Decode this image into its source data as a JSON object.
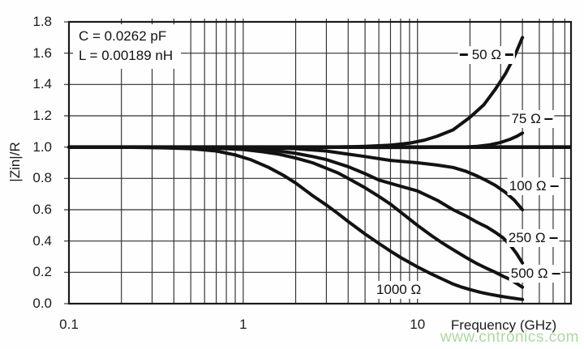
{
  "figure": {
    "xlabel": "Frequency (GHz)",
    "ylabel": "|Zin|/R",
    "watermark": "www.cntronics.com",
    "annotation": {
      "line1": "C = 0.0262 pF",
      "line2": "L = 0.00189 nH"
    }
  },
  "chart_data": {
    "type": "line",
    "title": "",
    "xlabel": "Frequency (GHz)",
    "ylabel": "|Zin|/R",
    "x_scale": "log",
    "xlim": [
      0.1,
      76
    ],
    "ylim": [
      0.0,
      1.8
    ],
    "grid": true,
    "x_ticks": {
      "values": [
        0.1,
        1,
        10
      ],
      "labels": [
        "0.1",
        "1",
        "10"
      ]
    },
    "x_minor_ticks": [
      0.2,
      0.3,
      0.4,
      0.5,
      0.6,
      0.7,
      0.8,
      0.9,
      2,
      3,
      4,
      5,
      6,
      7,
      8,
      9,
      20,
      30,
      40,
      50,
      60,
      70
    ],
    "y_ticks": [
      0.0,
      0.2,
      0.4,
      0.6,
      0.8,
      1.0,
      1.2,
      1.4,
      1.6,
      1.8
    ],
    "y_tick_labels": [
      "0.0",
      "0.2",
      "0.4",
      "0.6",
      "0.8",
      "1.0",
      "1.2",
      "1.4",
      "1.6",
      "1.8"
    ],
    "reference_line": {
      "value": 1.0
    },
    "annotation": [
      "C = 0.0262 pF",
      "L = 0.00189 nH"
    ],
    "legend_position": "labels-on-curves",
    "series": [
      {
        "label": "50 Ω",
        "resistance_ohms": 50,
        "leader_dash": "both",
        "label_at": [
          24.9,
          1.59
        ],
        "points": [
          [
            0.1,
            1.0
          ],
          [
            0.5,
            1.0
          ],
          [
            1,
            1.0
          ],
          [
            2,
            1.0
          ],
          [
            3,
            1.0
          ],
          [
            4,
            1.002
          ],
          [
            5,
            1.005
          ],
          [
            7,
            1.012
          ],
          [
            9,
            1.025
          ],
          [
            11,
            1.045
          ],
          [
            13,
            1.07
          ],
          [
            16,
            1.11
          ],
          [
            20,
            1.19
          ],
          [
            24,
            1.27
          ],
          [
            28,
            1.37
          ],
          [
            32,
            1.47
          ],
          [
            36,
            1.58
          ],
          [
            40,
            1.7
          ]
        ]
      },
      {
        "label": "75 Ω",
        "resistance_ohms": 75,
        "leader_dash": "right",
        "label_at": [
          45.5,
          1.18
        ],
        "points": [
          [
            0.1,
            1.0
          ],
          [
            1,
            1.0
          ],
          [
            3,
            1.0
          ],
          [
            6,
            0.998
          ],
          [
            10,
            0.998
          ],
          [
            14,
            0.999
          ],
          [
            18,
            1.0
          ],
          [
            22,
            1.005
          ],
          [
            26,
            1.015
          ],
          [
            30,
            1.03
          ],
          [
            34,
            1.05
          ],
          [
            37,
            1.068
          ],
          [
            40,
            1.09
          ]
        ]
      },
      {
        "label": "100 Ω",
        "resistance_ohms": 100,
        "leader_dash": "right",
        "label_at": [
          46.5,
          0.75
        ],
        "points": [
          [
            0.1,
            1.0
          ],
          [
            0.8,
            1.0
          ],
          [
            1.5,
            0.995
          ],
          [
            2,
            0.99
          ],
          [
            3,
            0.975
          ],
          [
            4,
            0.955
          ],
          [
            5,
            0.94
          ],
          [
            7,
            0.915
          ],
          [
            10,
            0.9
          ],
          [
            13,
            0.885
          ],
          [
            16,
            0.87
          ],
          [
            19,
            0.845
          ],
          [
            22,
            0.815
          ],
          [
            25,
            0.785
          ],
          [
            28,
            0.755
          ],
          [
            32,
            0.71
          ],
          [
            36,
            0.66
          ],
          [
            40,
            0.6
          ]
        ]
      },
      {
        "label": "250 Ω",
        "resistance_ohms": 250,
        "leader_dash": "right",
        "label_at": [
          46.0,
          0.42
        ],
        "points": [
          [
            0.1,
            1.0
          ],
          [
            0.4,
            1.0
          ],
          [
            0.8,
            0.995
          ],
          [
            1.2,
            0.985
          ],
          [
            1.6,
            0.975
          ],
          [
            2,
            0.96
          ],
          [
            2.5,
            0.94
          ],
          [
            3,
            0.92
          ],
          [
            4,
            0.875
          ],
          [
            5,
            0.83
          ],
          [
            6,
            0.79
          ],
          [
            8,
            0.75
          ],
          [
            10,
            0.72
          ],
          [
            13,
            0.66
          ],
          [
            16,
            0.6
          ],
          [
            19,
            0.56
          ],
          [
            22,
            0.52
          ],
          [
            25,
            0.49
          ],
          [
            28,
            0.455
          ],
          [
            31,
            0.42
          ],
          [
            34,
            0.375
          ],
          [
            37,
            0.32
          ],
          [
            40,
            0.26
          ]
        ]
      },
      {
        "label": "500 Ω",
        "resistance_ohms": 500,
        "leader_dash": "right",
        "label_at": [
          47.5,
          0.19
        ],
        "points": [
          [
            0.1,
            1.0
          ],
          [
            0.3,
            1.0
          ],
          [
            0.6,
            0.995
          ],
          [
            0.8,
            0.99
          ],
          [
            1,
            0.985
          ],
          [
            1.3,
            0.97
          ],
          [
            1.6,
            0.955
          ],
          [
            2,
            0.93
          ],
          [
            2.5,
            0.9
          ],
          [
            3,
            0.865
          ],
          [
            3.5,
            0.835
          ],
          [
            4,
            0.8
          ],
          [
            5,
            0.74
          ],
          [
            6,
            0.685
          ],
          [
            7,
            0.635
          ],
          [
            8,
            0.585
          ],
          [
            10,
            0.5
          ],
          [
            12,
            0.435
          ],
          [
            14,
            0.385
          ],
          [
            16,
            0.345
          ],
          [
            19,
            0.295
          ],
          [
            22,
            0.255
          ],
          [
            25,
            0.225
          ],
          [
            28,
            0.2
          ],
          [
            31,
            0.175
          ],
          [
            34,
            0.155
          ],
          [
            37,
            0.13
          ],
          [
            40,
            0.105
          ]
        ]
      },
      {
        "label": "1000 Ω",
        "resistance_ohms": 1000,
        "leader_dash": "none",
        "label_at": [
          7.8,
          0.09
        ],
        "points": [
          [
            0.1,
            1.0
          ],
          [
            0.2,
            1.0
          ],
          [
            0.35,
            0.995
          ],
          [
            0.5,
            0.99
          ],
          [
            0.7,
            0.975
          ],
          [
            0.9,
            0.95
          ],
          [
            1.1,
            0.92
          ],
          [
            1.4,
            0.87
          ],
          [
            1.7,
            0.82
          ],
          [
            2,
            0.77
          ],
          [
            2.5,
            0.69
          ],
          [
            3,
            0.63
          ],
          [
            3.5,
            0.575
          ],
          [
            4,
            0.525
          ],
          [
            5,
            0.445
          ],
          [
            6,
            0.385
          ],
          [
            7,
            0.335
          ],
          [
            8,
            0.295
          ],
          [
            10,
            0.235
          ],
          [
            12,
            0.19
          ],
          [
            14,
            0.155
          ],
          [
            16,
            0.125
          ],
          [
            18,
            0.105
          ],
          [
            20,
            0.09
          ],
          [
            23,
            0.072
          ],
          [
            26,
            0.06
          ],
          [
            30,
            0.047
          ],
          [
            34,
            0.038
          ],
          [
            37,
            0.032
          ],
          [
            40,
            0.027
          ]
        ]
      }
    ]
  },
  "colors": {
    "curve": "#121212",
    "grid": "#2f2f2f",
    "border": "#1a1a1a",
    "text": "#1c1c1c",
    "watermark": "#9ccf8c",
    "background": "#fefefe"
  }
}
